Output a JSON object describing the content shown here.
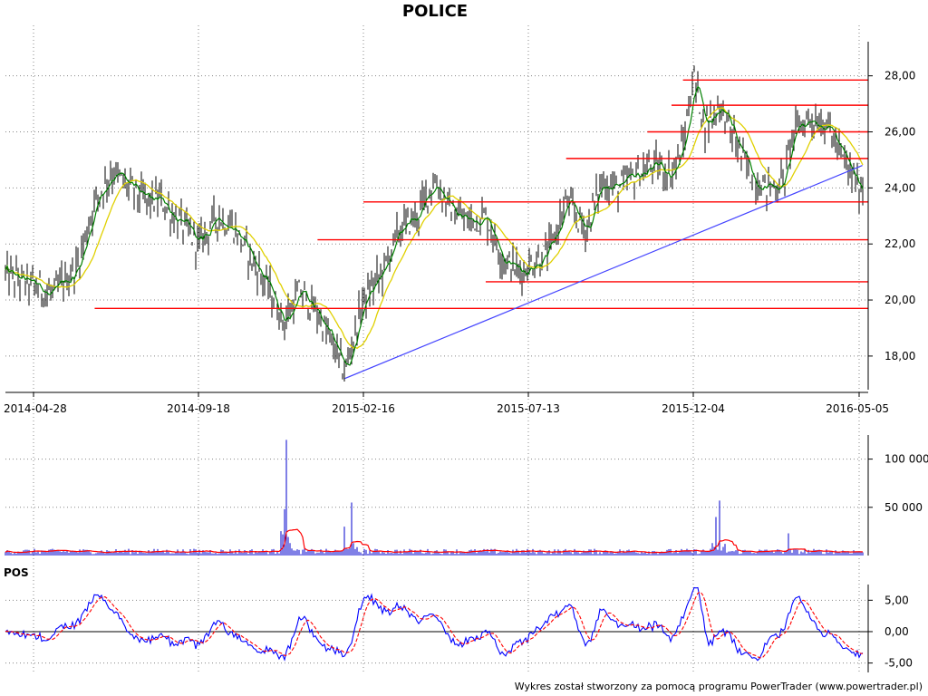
{
  "title": "POLICE",
  "footer": "Wykres został stworzony za pomocą programu PowerTrader (www.powertrader.pl)",
  "colors": {
    "price_bars": "#000000",
    "ma_short": "#008000",
    "ma_long": "#e0d000",
    "horizontal_levels": "#ff0000",
    "trend_line": "#4444ff",
    "volume_bars": "#0000cc",
    "volume_avg": "#ff0000",
    "pos_line": "#0000ff",
    "pos_signal": "#ff0000",
    "grid": "#888888"
  },
  "chart_data": [
    {
      "type": "line",
      "name": "price",
      "x_ticks": [
        "2014-04-28",
        "2014-09-18",
        "2015-02-16",
        "2015-07-13",
        "2015-12-04",
        "2016-05-05"
      ],
      "y_ticks": [
        "18,00",
        "20,00",
        "22,00",
        "24,00",
        "26,00",
        "28,00"
      ],
      "ylim": [
        16.8,
        29.8
      ],
      "grid": true,
      "close_series": [
        {
          "x": "2014-04-28",
          "y": 20.5
        },
        {
          "x": "2014-05-15",
          "y": 20.2
        },
        {
          "x": "2014-06-05",
          "y": 21.2
        },
        {
          "x": "2014-06-20",
          "y": 23.5
        },
        {
          "x": "2014-07-05",
          "y": 24.6
        },
        {
          "x": "2014-07-20",
          "y": 24.0
        },
        {
          "x": "2014-08-05",
          "y": 23.5
        },
        {
          "x": "2014-08-15",
          "y": 23.6
        },
        {
          "x": "2014-09-01",
          "y": 22.8
        },
        {
          "x": "2014-09-18",
          "y": 22.0
        },
        {
          "x": "2014-10-05",
          "y": 23.0
        },
        {
          "x": "2014-10-20",
          "y": 22.6
        },
        {
          "x": "2014-11-05",
          "y": 21.5
        },
        {
          "x": "2014-11-20",
          "y": 20.5
        },
        {
          "x": "2014-12-05",
          "y": 19.2
        },
        {
          "x": "2014-12-20",
          "y": 20.3
        },
        {
          "x": "2015-01-05",
          "y": 19.5
        },
        {
          "x": "2015-01-20",
          "y": 18.3
        },
        {
          "x": "2015-01-30",
          "y": 17.4
        },
        {
          "x": "2015-02-16",
          "y": 20.0
        },
        {
          "x": "2015-03-05",
          "y": 21.0
        },
        {
          "x": "2015-03-20",
          "y": 22.5
        },
        {
          "x": "2015-04-05",
          "y": 23.0
        },
        {
          "x": "2015-04-20",
          "y": 24.3
        },
        {
          "x": "2015-05-05",
          "y": 23.2
        },
        {
          "x": "2015-05-20",
          "y": 22.8
        },
        {
          "x": "2015-06-05",
          "y": 23.0
        },
        {
          "x": "2015-06-20",
          "y": 21.5
        },
        {
          "x": "2015-07-05",
          "y": 21.0
        },
        {
          "x": "2015-07-13",
          "y": 21.2
        },
        {
          "x": "2015-08-01",
          "y": 21.8
        },
        {
          "x": "2015-08-15",
          "y": 23.5
        },
        {
          "x": "2015-09-01",
          "y": 22.5
        },
        {
          "x": "2015-09-15",
          "y": 24.2
        },
        {
          "x": "2015-10-01",
          "y": 24.0
        },
        {
          "x": "2015-10-15",
          "y": 24.5
        },
        {
          "x": "2015-11-01",
          "y": 24.8
        },
        {
          "x": "2015-11-15",
          "y": 24.5
        },
        {
          "x": "2015-11-25",
          "y": 25.5
        },
        {
          "x": "2015-12-04",
          "y": 28.0
        },
        {
          "x": "2015-12-15",
          "y": 26.2
        },
        {
          "x": "2015-12-28",
          "y": 27.0
        },
        {
          "x": "2016-01-10",
          "y": 25.8
        },
        {
          "x": "2016-01-25",
          "y": 24.5
        },
        {
          "x": "2016-02-10",
          "y": 24.0
        },
        {
          "x": "2016-02-25",
          "y": 24.2
        },
        {
          "x": "2016-03-05",
          "y": 26.0
        },
        {
          "x": "2016-03-20",
          "y": 26.5
        },
        {
          "x": "2016-04-05",
          "y": 26.3
        },
        {
          "x": "2016-04-20",
          "y": 25.0
        },
        {
          "x": "2016-05-05",
          "y": 24.0
        }
      ],
      "horizontal_levels": [
        {
          "y": 27.85,
          "from": "2015-11-25",
          "to": "2016-05-05"
        },
        {
          "y": 26.95,
          "from": "2015-11-15",
          "to": "2016-05-05"
        },
        {
          "y": 26.0,
          "from": "2015-10-25",
          "to": "2016-05-05"
        },
        {
          "y": 25.05,
          "from": "2015-08-15",
          "to": "2016-05-05"
        },
        {
          "y": 23.5,
          "from": "2015-02-16",
          "to": "2016-05-05"
        },
        {
          "y": 22.15,
          "from": "2015-01-05",
          "to": "2016-05-05"
        },
        {
          "y": 20.65,
          "from": "2015-06-05",
          "to": "2016-05-05"
        },
        {
          "y": 19.7,
          "from": "2014-06-20",
          "to": "2016-05-05"
        }
      ],
      "trend_line": [
        {
          "x": "2015-01-30",
          "y": 17.2
        },
        {
          "x": "2016-05-08",
          "y": 24.8
        }
      ]
    },
    {
      "type": "bar",
      "name": "volume",
      "y_ticks": [
        "50 000",
        "100 000"
      ],
      "ylim": [
        0,
        125000
      ],
      "grid": true,
      "spikes": [
        {
          "x": "2014-12-08",
          "y": 120000
        },
        {
          "x": "2014-12-05",
          "y": 48000
        },
        {
          "x": "2015-01-30",
          "y": 30000
        },
        {
          "x": "2015-02-05",
          "y": 55000
        },
        {
          "x": "2015-12-28",
          "y": 57000
        },
        {
          "x": "2015-12-25",
          "y": 40000
        },
        {
          "x": "2016-03-01",
          "y": 23000
        }
      ]
    },
    {
      "type": "line",
      "name": "POS",
      "y_ticks": [
        "-5,00",
        "0,00",
        "5,00"
      ],
      "ylim": [
        -6.5,
        7.5
      ],
      "grid": true
    }
  ]
}
